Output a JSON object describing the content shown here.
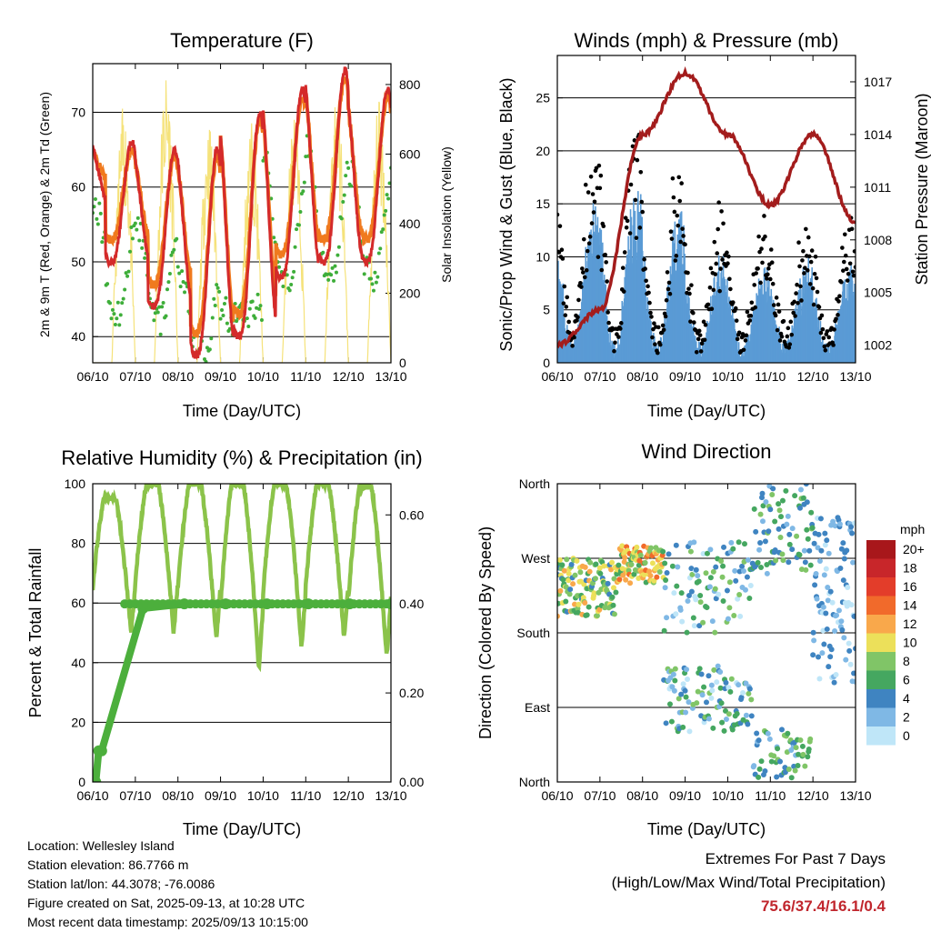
{
  "charts": {
    "temperature": {
      "title": "Temperature (F)",
      "xlabel": "Time (Day/UTC)",
      "ylabel_left": "2m & 9m T (Red, Orange) & 2m Td (Green)",
      "ylabel_right": "Solar Insolation (Yellow)"
    },
    "winds": {
      "title": "Winds (mph) & Pressure (mb)",
      "xlabel": "Time (Day/UTC)",
      "ylabel_left": "Sonic/Prop Wind & Gust (Blue, Black)",
      "ylabel_right": "Station Pressure (Maroon)"
    },
    "rh": {
      "title": "Relative Humidity (%) & Precipitation (in)",
      "xlabel": "Time (Day/UTC)",
      "ylabel_left": "Percent & Total Rainfall"
    },
    "wind_direction": {
      "title": "Wind Direction",
      "xlabel": "Time (Day/UTC)",
      "ylabel_left": "Direction (Colored By Speed)"
    }
  },
  "chart_data": [
    {
      "type": "line",
      "id": "temperature",
      "x_ticks": [
        "06/10",
        "07/10",
        "08/10",
        "09/10",
        "10/10",
        "11/10",
        "12/10",
        "13/10"
      ],
      "ylim": [
        36.5,
        76.5
      ],
      "y_ticks": [
        40,
        50,
        60,
        70
      ],
      "y2lim": [
        0,
        860
      ],
      "y2_ticks": [
        0,
        200,
        400,
        600,
        800
      ],
      "grid": true,
      "daily_max_temp_2m": [
        66,
        65,
        65,
        70,
        73,
        75.6,
        73
      ],
      "daily_min_temp_2m": [
        58,
        50,
        44,
        37.4,
        40,
        48,
        50
      ],
      "daily_min_dewpoint": [
        50,
        43,
        42,
        37.5,
        43,
        47,
        48
      ],
      "daily_max_dewpoint": [
        57,
        55,
        48,
        44,
        64,
        65,
        62
      ],
      "daily_max_solar": [
        740,
        840,
        700,
        700,
        720,
        800,
        760
      ],
      "series": [
        {
          "color": "#d42a2a"
        },
        {
          "color": "#f07a1e"
        },
        {
          "color": "#3eae3a"
        },
        {
          "color": "#f5e27a"
        }
      ]
    },
    {
      "type": "scatter",
      "id": "winds",
      "x_ticks": [
        "06/10",
        "07/10",
        "08/10",
        "09/10",
        "10/10",
        "11/10",
        "12/10",
        "13/10"
      ],
      "ylim": [
        0,
        29
      ],
      "y_ticks": [
        0,
        5,
        10,
        15,
        20,
        25
      ],
      "y2lim": [
        1001,
        1018.5
      ],
      "y2_ticks": [
        1002,
        1005,
        1008,
        1011,
        1014,
        1017
      ],
      "grid": true,
      "pressure_daily": [
        1002,
        1004,
        1014,
        1017.5,
        1014,
        1010,
        1014,
        1009
      ],
      "daily_peak_wind": [
        15,
        16,
        13,
        9,
        8,
        9,
        8
      ],
      "daily_peak_gust": [
        23,
        26.5,
        18,
        14,
        13,
        13,
        12
      ],
      "series": [
        {
          "color": "#5a9bd5"
        },
        {
          "color": "#000000"
        },
        {
          "color": "#a31c1c"
        }
      ]
    },
    {
      "type": "line",
      "id": "rh",
      "x_ticks": [
        "06/10",
        "07/10",
        "08/10",
        "09/10",
        "10/10",
        "11/10",
        "12/10",
        "13/10"
      ],
      "ylim": [
        0,
        100
      ],
      "y_ticks": [
        0,
        20,
        40,
        60,
        80,
        100
      ],
      "y2lim": [
        0,
        0.67
      ],
      "y2_ticks": [
        "0.00",
        "0.20",
        "0.40",
        "0.60"
      ],
      "grid": true,
      "rh_daily_max": [
        95,
        100,
        100,
        100,
        100,
        100,
        99
      ],
      "rh_daily_min": [
        50,
        50,
        48,
        38,
        45,
        48,
        42
      ],
      "precip_total": [
        0,
        0,
        0.07,
        0.07,
        0.39,
        0.4,
        0.4,
        0.4,
        0.4,
        0.4,
        0.4
      ],
      "series": [
        {
          "color": "#8bc34a"
        },
        {
          "color": "#4caf3c"
        }
      ]
    },
    {
      "type": "scatter",
      "id": "wind_direction",
      "x_ticks": [
        "06/10",
        "07/10",
        "08/10",
        "09/10",
        "10/10",
        "11/10",
        "12/10",
        "13/10"
      ],
      "y_ticks": [
        "North",
        "East",
        "South",
        "West",
        "North"
      ],
      "ylim": [
        0,
        360
      ],
      "colorbar": {
        "title": "mph",
        "labels": [
          "20+",
          "18",
          "16",
          "14",
          "12",
          "10",
          "8",
          "6",
          "4",
          "2",
          "0"
        ],
        "colors": [
          "#a8171b",
          "#c8262a",
          "#e33d2a",
          "#f16a2b",
          "#f9a84b",
          "#ece05a",
          "#80c567",
          "#45a760",
          "#3f84c1",
          "#7fb8e5",
          "#bfe6f8"
        ]
      }
    }
  ],
  "footer": {
    "location": "Location: Wellesley Island",
    "elevation": "Station elevation: 86.7766 m",
    "latlon": "Station lat/lon: 44.3078; -76.0086",
    "created": "Figure created on Sat, 2025-09-13, at 10:28 UTC",
    "recent": "Most recent data timestamp: 2025/09/13 10:15:00",
    "extremes_title": "Extremes For Past 7 Days",
    "extremes_subtitle": "(High/Low/Max Wind/Total Precipitation)",
    "extremes_values": "75.6/37.4/16.1/0.4"
  }
}
